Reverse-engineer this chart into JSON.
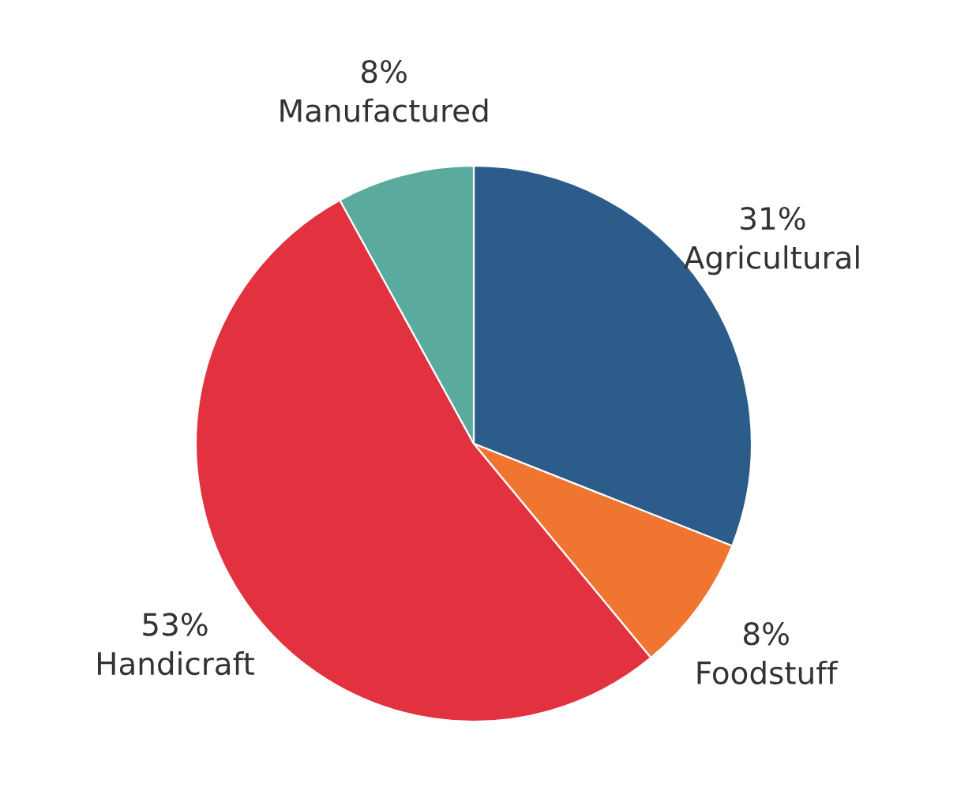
{
  "chart_data": {
    "type": "pie",
    "categories": [
      "Agricultural",
      "Foodstuff",
      "Handicraft",
      "Manufactured"
    ],
    "values": [
      31,
      8,
      53,
      8
    ],
    "value_labels": [
      "31%",
      "8%",
      "53%",
      "8%"
    ],
    "colors": [
      "#2c5d8a",
      "#ef7530",
      "#e2313f",
      "#5aab9e"
    ],
    "legend": false
  }
}
